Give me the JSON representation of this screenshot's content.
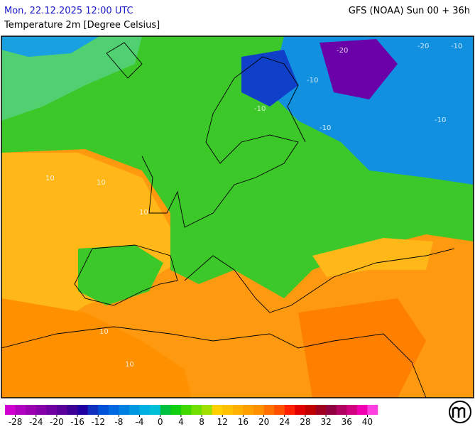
{
  "header": {
    "left": "Mon, 22.12.2025 12:00 UTC",
    "right": "GFS (NOAA) Sun 00 + 36h",
    "subtitle": "Temperature 2m [Degree Celsius]"
  },
  "map": {
    "contour_labels": [
      "-20",
      "-20",
      "-10",
      "-10",
      "-10",
      "-10",
      "-10",
      "10",
      "10",
      "10",
      "10",
      "10"
    ]
  },
  "legend": {
    "lim": [
      -30,
      42
    ],
    "ticks": [
      -28,
      -24,
      -20,
      -16,
      -12,
      -8,
      -4,
      0,
      4,
      8,
      12,
      16,
      20,
      24,
      28,
      32,
      36,
      40
    ],
    "colors": [
      "#d000d0",
      "#b000c0",
      "#9a00b0",
      "#8400a8",
      "#6e00a0",
      "#5a009a",
      "#3c0096",
      "#2000a0",
      "#1030c0",
      "#0050d8",
      "#0068e0",
      "#0080e0",
      "#0098e0",
      "#00b0e0",
      "#00c0d8",
      "#00c040",
      "#10d010",
      "#40d800",
      "#70e000",
      "#a0e000",
      "#ffd000",
      "#ffc000",
      "#ffb000",
      "#ffa000",
      "#ff9000",
      "#ff7000",
      "#ff5000",
      "#ff2000",
      "#e00000",
      "#c00000",
      "#a00020",
      "#900040",
      "#b00060",
      "#d00080",
      "#f000b0",
      "#ff40e0"
    ]
  }
}
